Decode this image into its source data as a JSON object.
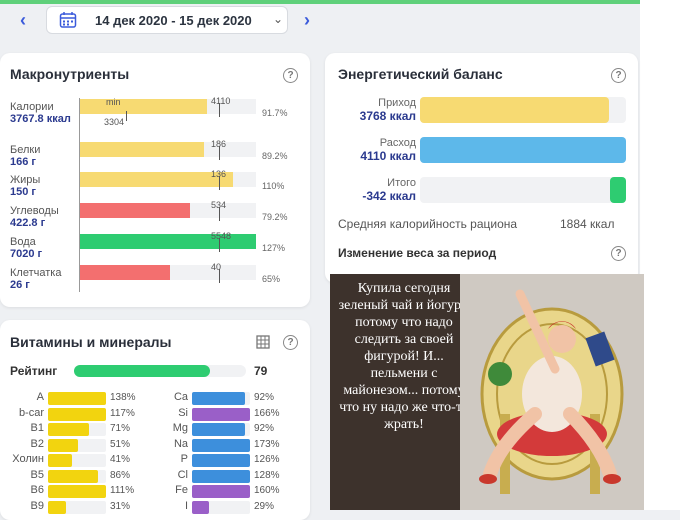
{
  "date_range": "14 дек 2020 - 15 дек 2020",
  "macro": {
    "title": "Макронутриенты",
    "rows": [
      {
        "name": "Калории",
        "value": "3767.8 ккал",
        "fill": 0.917,
        "color": "#f7da72",
        "marker": "4110",
        "pct": "91.7%",
        "inner": "min",
        "extra": "3304"
      },
      {
        "name": "Белки",
        "value": "166 г",
        "fill": 0.892,
        "color": "#f7da72",
        "marker": "186",
        "pct": "89.2%"
      },
      {
        "name": "Жиры",
        "value": "150 г",
        "fill": 1.1,
        "color": "#f7da72",
        "marker": "136",
        "pct": "110%"
      },
      {
        "name": "Углеводы",
        "value": "422.8 г",
        "fill": 0.792,
        "color": "#f36f6f",
        "marker": "534",
        "pct": "79.2%"
      },
      {
        "name": "Вода",
        "value": "7020 г",
        "fill": 1.27,
        "color": "#2ecc71",
        "marker": "5548",
        "pct": "127%"
      },
      {
        "name": "Клетчатка",
        "value": "26 г",
        "fill": 0.65,
        "color": "#f36f6f",
        "marker": "40",
        "pct": "65%"
      }
    ]
  },
  "energy": {
    "title": "Энергетический баланс",
    "rows": [
      {
        "name": "Приход",
        "value": "3768 ккал",
        "fill": 0.917,
        "color": "#f7da72"
      },
      {
        "name": "Расход",
        "value": "4110 ккал",
        "fill": 1.0,
        "color": "#5db8ea"
      },
      {
        "name": "Итого",
        "value": "-342 ккал",
        "fill": 0.08,
        "color": "#2ecc71"
      }
    ],
    "avg_label": "Средняя калорийность рациона",
    "avg_value": "1884 ккал",
    "weight_label": "Изменение веса за период"
  },
  "vitamins": {
    "title": "Витамины и минералы",
    "rating_label": "Рейтинг",
    "rating_value": "79",
    "rating_fill": 0.79,
    "left": [
      {
        "name": "A",
        "pct": "138%",
        "fill": 1.0,
        "color": "#f2d40f"
      },
      {
        "name": "b-car",
        "pct": "117%",
        "fill": 1.0,
        "color": "#f2d40f"
      },
      {
        "name": "B1",
        "pct": "71%",
        "fill": 0.71,
        "color": "#f2d40f"
      },
      {
        "name": "B2",
        "pct": "51%",
        "fill": 0.51,
        "color": "#f2d40f"
      },
      {
        "name": "Холин",
        "pct": "41%",
        "fill": 0.41,
        "color": "#f2d40f"
      },
      {
        "name": "B5",
        "pct": "86%",
        "fill": 0.86,
        "color": "#f2d40f"
      },
      {
        "name": "B6",
        "pct": "111%",
        "fill": 1.0,
        "color": "#f2d40f"
      },
      {
        "name": "B9",
        "pct": "31%",
        "fill": 0.31,
        "color": "#f2d40f"
      }
    ],
    "right": [
      {
        "name": "Ca",
        "pct": "92%",
        "fill": 0.92,
        "color": "#3d8fdc"
      },
      {
        "name": "Si",
        "pct": "166%",
        "fill": 1.0,
        "color": "#9a5fc8"
      },
      {
        "name": "Mg",
        "pct": "92%",
        "fill": 0.92,
        "color": "#3d8fdc"
      },
      {
        "name": "Na",
        "pct": "173%",
        "fill": 1.0,
        "color": "#3d8fdc"
      },
      {
        "name": "P",
        "pct": "126%",
        "fill": 1.0,
        "color": "#3d8fdc"
      },
      {
        "name": "Cl",
        "pct": "128%",
        "fill": 1.0,
        "color": "#3d8fdc"
      },
      {
        "name": "Fe",
        "pct": "160%",
        "fill": 1.0,
        "color": "#9a5fc8"
      },
      {
        "name": "I",
        "pct": "29%",
        "fill": 0.29,
        "color": "#9a5fc8"
      }
    ]
  },
  "meme_text": "Купила сегодня зеленый чай и йогурт, потому что надо следить за своей фигурой! И... пельмени с майонезом... потому что ну надо же что-то жрать!"
}
